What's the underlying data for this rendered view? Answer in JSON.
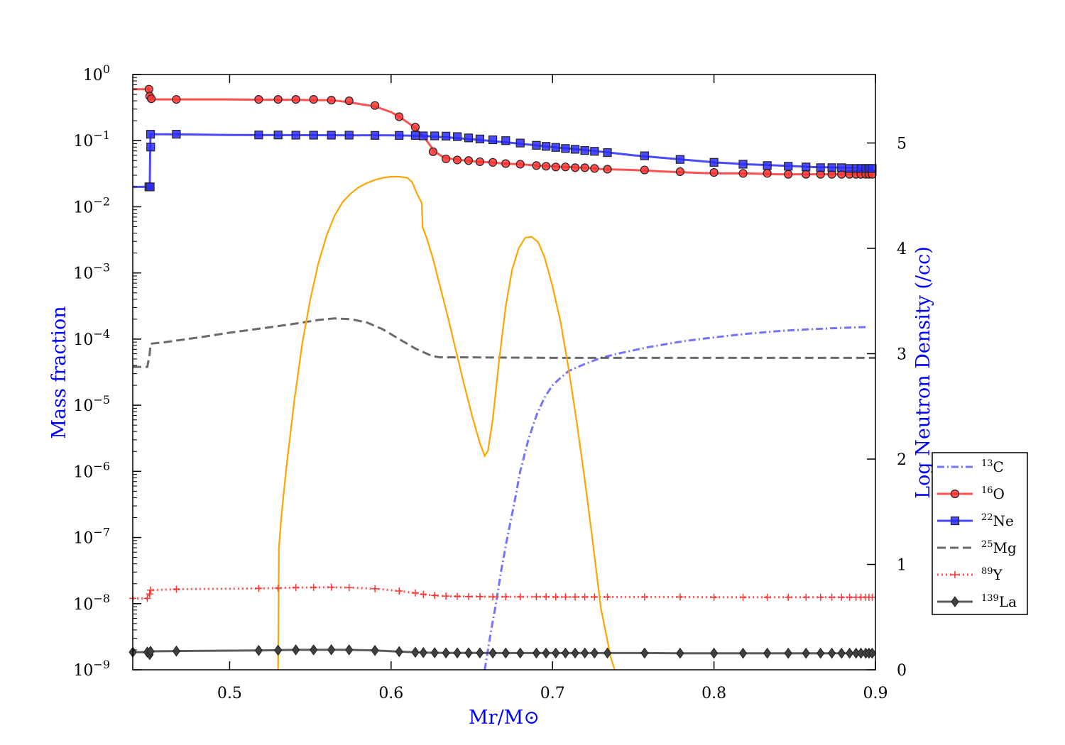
{
  "chart_data": {
    "type": "line",
    "xlabel": "Mr/M⊙",
    "ylabel_left": "Mass fraction",
    "ylabel_right": "Log Neutron Density (/cc)",
    "xlim": [
      0.44,
      0.9
    ],
    "ylim_left": [
      1e-09,
      1
    ],
    "yscale_left": "log",
    "ylim_right": [
      0,
      5.65
    ],
    "x_ticks": [
      "0.5",
      "0.6",
      "0.7",
      "0.8",
      "0.9"
    ],
    "x_tick_values": [
      0.5,
      0.6,
      0.7,
      0.8,
      0.9
    ],
    "y_left_ticks": [
      {
        "base": "10",
        "exp": "0",
        "value": 1
      },
      {
        "base": "10",
        "exp": "−1",
        "value": 0.1
      },
      {
        "base": "10",
        "exp": "−2",
        "value": 0.01
      },
      {
        "base": "10",
        "exp": "−3",
        "value": 0.001
      },
      {
        "base": "10",
        "exp": "−4",
        "value": 0.0001
      },
      {
        "base": "10",
        "exp": "−5",
        "value": 1e-05
      },
      {
        "base": "10",
        "exp": "−6",
        "value": 1e-06
      },
      {
        "base": "10",
        "exp": "−7",
        "value": 1e-07
      },
      {
        "base": "10",
        "exp": "−8",
        "value": 1e-08
      },
      {
        "base": "10",
        "exp": "−9",
        "value": 1e-09
      }
    ],
    "y_right_ticks": [
      "0",
      "1",
      "2",
      "3",
      "4",
      "5"
    ],
    "y_right_tick_values": [
      0,
      1,
      2,
      3,
      4,
      5
    ],
    "legend_position": "right",
    "colors": {
      "axis_title_left": "#0000ff",
      "axis_title_right": "#0000ff",
      "axis_title_x": "#0000ff",
      "neutron_density": "#ffa500"
    },
    "series": [
      {
        "name": "13C",
        "iso_mass": "13",
        "iso_sym": "C",
        "color": "#5a5aff",
        "style": "dashdot",
        "marker": "none",
        "axis": "left",
        "x": [
          0.658,
          0.66,
          0.662,
          0.665,
          0.668,
          0.672,
          0.676,
          0.68,
          0.685,
          0.69,
          0.695,
          0.7,
          0.705,
          0.71,
          0.72,
          0.73,
          0.74,
          0.76,
          0.78,
          0.8,
          0.82,
          0.84,
          0.86,
          0.88,
          0.895
        ],
        "y": [
          1e-09,
          2e-09,
          4e-09,
          1e-08,
          3e-08,
          1e-07,
          3e-07,
          1e-06,
          3e-06,
          7e-06,
          1.3e-05,
          2e-05,
          2.6e-05,
          3.3e-05,
          4.2e-05,
          5.2e-05,
          6e-05,
          7.6e-05,
          9.2e-05,
          0.000106,
          0.00012,
          0.000132,
          0.000141,
          0.000148,
          0.000152
        ]
      },
      {
        "name": "16O",
        "iso_mass": "16",
        "iso_sym": "O",
        "color": "#ff3333",
        "style": "solid",
        "marker": "circle",
        "axis": "left",
        "x": [
          0.44,
          0.45,
          0.4505,
          0.451,
          0.4515,
          0.46,
          0.47,
          0.5,
          0.52,
          0.53,
          0.54,
          0.55,
          0.56,
          0.567,
          0.574,
          0.58,
          0.59,
          0.6,
          0.605,
          0.61,
          0.615,
          0.618,
          0.622,
          0.627,
          0.633,
          0.64,
          0.646,
          0.653,
          0.662,
          0.67,
          0.68,
          0.69,
          0.7,
          0.705,
          0.71,
          0.715,
          0.72,
          0.725,
          0.732,
          0.75,
          0.77,
          0.8,
          0.82,
          0.84,
          0.86,
          0.87,
          0.88,
          0.885,
          0.89,
          0.895,
          0.898
        ],
        "y": [
          0.6,
          0.6,
          0.47,
          0.43,
          0.42,
          0.42,
          0.42,
          0.42,
          0.415,
          0.415,
          0.415,
          0.41,
          0.41,
          0.4,
          0.38,
          0.36,
          0.33,
          0.27,
          0.23,
          0.19,
          0.155,
          0.13,
          0.1,
          0.068,
          0.055,
          0.052,
          0.05,
          0.048,
          0.047,
          0.045,
          0.044,
          0.042,
          0.041,
          0.04,
          0.04,
          0.039,
          0.039,
          0.038,
          0.037,
          0.036,
          0.034,
          0.032,
          0.032,
          0.031,
          0.031,
          0.031,
          0.031,
          0.031,
          0.031,
          0.031,
          0.031
        ],
        "markers_x": [
          0.45,
          0.4505,
          0.4515,
          0.467,
          0.518,
          0.53,
          0.541,
          0.552,
          0.563,
          0.574,
          0.59,
          0.605,
          0.615,
          0.626,
          0.634,
          0.641,
          0.648,
          0.655,
          0.663,
          0.671,
          0.68,
          0.69,
          0.696,
          0.702,
          0.708,
          0.714,
          0.72,
          0.726,
          0.734,
          0.757,
          0.779,
          0.8,
          0.818,
          0.833,
          0.846,
          0.857,
          0.866,
          0.873,
          0.879,
          0.884,
          0.888,
          0.891,
          0.894,
          0.896,
          0.898
        ],
        "markers_y": [
          0.6,
          0.47,
          0.43,
          0.42,
          0.42,
          0.42,
          0.42,
          0.42,
          0.41,
          0.4,
          0.34,
          0.23,
          0.16,
          0.068,
          0.053,
          0.051,
          0.05,
          0.048,
          0.047,
          0.045,
          0.044,
          0.042,
          0.041,
          0.04,
          0.04,
          0.039,
          0.039,
          0.038,
          0.037,
          0.036,
          0.034,
          0.033,
          0.032,
          0.032,
          0.031,
          0.031,
          0.031,
          0.031,
          0.031,
          0.031,
          0.031,
          0.031,
          0.031,
          0.031,
          0.031
        ]
      },
      {
        "name": "22Ne",
        "iso_mass": "22",
        "iso_sym": "Ne",
        "color": "#2a2aff",
        "style": "solid",
        "marker": "square",
        "axis": "left",
        "x": [
          0.44,
          0.449,
          0.4505,
          0.4508,
          0.451,
          0.46,
          0.5,
          0.55,
          0.6,
          0.62,
          0.64,
          0.66,
          0.68,
          0.7,
          0.72,
          0.735,
          0.75,
          0.78,
          0.8,
          0.82,
          0.84,
          0.86,
          0.88,
          0.898
        ],
        "y": [
          0.02,
          0.02,
          0.02,
          0.08,
          0.125,
          0.125,
          0.122,
          0.121,
          0.12,
          0.118,
          0.11,
          0.1,
          0.09,
          0.08,
          0.072,
          0.066,
          0.06,
          0.052,
          0.047,
          0.044,
          0.042,
          0.04,
          0.039,
          0.038
        ],
        "markers_x": [
          0.45,
          0.4508,
          0.4511,
          0.451,
          0.467,
          0.518,
          0.53,
          0.541,
          0.552,
          0.563,
          0.574,
          0.59,
          0.605,
          0.615,
          0.62,
          0.627,
          0.634,
          0.641,
          0.648,
          0.655,
          0.663,
          0.671,
          0.68,
          0.69,
          0.696,
          0.702,
          0.708,
          0.714,
          0.72,
          0.726,
          0.734,
          0.757,
          0.779,
          0.8,
          0.818,
          0.833,
          0.846,
          0.857,
          0.866,
          0.873,
          0.879,
          0.884,
          0.888,
          0.891,
          0.894,
          0.896,
          0.898
        ],
        "markers_y": [
          0.02,
          0.02,
          0.08,
          0.125,
          0.125,
          0.122,
          0.122,
          0.121,
          0.121,
          0.121,
          0.121,
          0.12,
          0.12,
          0.12,
          0.118,
          0.118,
          0.117,
          0.115,
          0.11,
          0.106,
          0.103,
          0.1,
          0.092,
          0.085,
          0.082,
          0.079,
          0.076,
          0.074,
          0.071,
          0.069,
          0.066,
          0.059,
          0.052,
          0.047,
          0.044,
          0.042,
          0.041,
          0.04,
          0.039,
          0.039,
          0.039,
          0.038,
          0.038,
          0.038,
          0.038,
          0.038,
          0.038
        ]
      },
      {
        "name": "25Mg",
        "iso_mass": "25",
        "iso_sym": "Mg",
        "color": "#505050",
        "style": "dashed",
        "marker": "none",
        "axis": "left",
        "x": [
          0.44,
          0.449,
          0.4505,
          0.451,
          0.46,
          0.48,
          0.5,
          0.52,
          0.54,
          0.555,
          0.565,
          0.575,
          0.585,
          0.595,
          0.605,
          0.615,
          0.625,
          0.63,
          0.65,
          0.7,
          0.75,
          0.8,
          0.85,
          0.9
        ],
        "y": [
          3.8e-05,
          3.8e-05,
          6e-05,
          8.5e-05,
          9e-05,
          0.000105,
          0.000125,
          0.000145,
          0.00017,
          0.000195,
          0.000205,
          0.0002,
          0.000178,
          0.00014,
          0.0001,
          7.2e-05,
          5.6e-05,
          5.3e-05,
          5.3e-05,
          5.2e-05,
          5.2e-05,
          5.2e-05,
          5.2e-05,
          5.2e-05
        ]
      },
      {
        "name": "89Y",
        "iso_mass": "89",
        "iso_sym": "Y",
        "color": "#ff3333",
        "style": "dotted",
        "marker": "plus",
        "axis": "left",
        "x": [
          0.44,
          0.449,
          0.4505,
          0.451,
          0.467,
          0.518,
          0.53,
          0.541,
          0.552,
          0.563,
          0.574,
          0.59,
          0.605,
          0.615,
          0.62,
          0.627,
          0.634,
          0.641,
          0.648,
          0.655,
          0.663,
          0.671,
          0.68,
          0.69,
          0.696,
          0.702,
          0.708,
          0.714,
          0.72,
          0.726,
          0.734,
          0.757,
          0.779,
          0.8,
          0.818,
          0.833,
          0.846,
          0.857,
          0.866,
          0.873,
          0.879,
          0.884,
          0.888,
          0.891,
          0.894,
          0.896,
          0.898
        ],
        "y": [
          1.2e-08,
          1.2e-08,
          1.4e-08,
          1.6e-08,
          1.65e-08,
          1.7e-08,
          1.72e-08,
          1.75e-08,
          1.76e-08,
          1.77e-08,
          1.75e-08,
          1.68e-08,
          1.55e-08,
          1.45e-08,
          1.38e-08,
          1.33e-08,
          1.3e-08,
          1.29e-08,
          1.28e-08,
          1.28e-08,
          1.27e-08,
          1.27e-08,
          1.27e-08,
          1.27e-08,
          1.27e-08,
          1.26e-08,
          1.26e-08,
          1.26e-08,
          1.26e-08,
          1.26e-08,
          1.26e-08,
          1.26e-08,
          1.26e-08,
          1.25e-08,
          1.25e-08,
          1.25e-08,
          1.25e-08,
          1.25e-08,
          1.25e-08,
          1.25e-08,
          1.25e-08,
          1.25e-08,
          1.25e-08,
          1.25e-08,
          1.25e-08,
          1.25e-08,
          1.25e-08
        ]
      },
      {
        "name": "139La",
        "iso_mass": "139",
        "iso_sym": "La",
        "color": "#404040",
        "style": "solid",
        "marker": "diamond",
        "axis": "left",
        "x": [
          0.44,
          0.449,
          0.4505,
          0.451,
          0.467,
          0.518,
          0.53,
          0.541,
          0.552,
          0.563,
          0.574,
          0.59,
          0.605,
          0.615,
          0.62,
          0.627,
          0.634,
          0.641,
          0.648,
          0.655,
          0.663,
          0.671,
          0.68,
          0.69,
          0.696,
          0.702,
          0.708,
          0.714,
          0.72,
          0.726,
          0.734,
          0.757,
          0.779,
          0.8,
          0.818,
          0.833,
          0.846,
          0.857,
          0.866,
          0.873,
          0.879,
          0.884,
          0.888,
          0.891,
          0.894,
          0.896,
          0.898
        ],
        "y": [
          1.85e-09,
          1.85e-09,
          1.7e-09,
          1.9e-09,
          1.92e-09,
          1.96e-09,
          1.98e-09,
          2e-09,
          2e-09,
          2.01e-09,
          2e-09,
          1.96e-09,
          1.88e-09,
          1.84e-09,
          1.82e-09,
          1.81e-09,
          1.8e-09,
          1.8e-09,
          1.8e-09,
          1.8e-09,
          1.79e-09,
          1.79e-09,
          1.79e-09,
          1.79e-09,
          1.79e-09,
          1.79e-09,
          1.79e-09,
          1.79e-09,
          1.79e-09,
          1.79e-09,
          1.79e-09,
          1.79e-09,
          1.78e-09,
          1.78e-09,
          1.78e-09,
          1.78e-09,
          1.78e-09,
          1.78e-09,
          1.78e-09,
          1.78e-09,
          1.78e-09,
          1.78e-09,
          1.78e-09,
          1.78e-09,
          1.78e-09,
          1.78e-09,
          1.78e-09
        ]
      }
    ],
    "neutron_density": {
      "axis": "right",
      "color": "#ffa500",
      "x": [
        0.53,
        0.5305,
        0.532,
        0.535,
        0.54,
        0.545,
        0.55,
        0.555,
        0.56,
        0.565,
        0.57,
        0.575,
        0.58,
        0.585,
        0.59,
        0.595,
        0.6,
        0.605,
        0.61,
        0.613,
        0.616,
        0.618,
        0.619,
        0.6195,
        0.622,
        0.626,
        0.63,
        0.635,
        0.64,
        0.645,
        0.65,
        0.655,
        0.658,
        0.66,
        0.663,
        0.667,
        0.671,
        0.675,
        0.679,
        0.683,
        0.687,
        0.691,
        0.695,
        0.7,
        0.705,
        0.71,
        0.715,
        0.72,
        0.725,
        0.73,
        0.733,
        0.736,
        0.7385
      ],
      "y": [
        0,
        1.15,
        1.45,
        1.9,
        2.55,
        3.1,
        3.52,
        3.86,
        4.12,
        4.31,
        4.44,
        4.52,
        4.58,
        4.62,
        4.65,
        4.67,
        4.68,
        4.68,
        4.67,
        4.63,
        4.52,
        4.46,
        4.43,
        4.2,
        4.1,
        3.9,
        3.66,
        3.36,
        3.04,
        2.72,
        2.42,
        2.15,
        2.03,
        2.08,
        2.38,
        2.95,
        3.45,
        3.8,
        4.0,
        4.1,
        4.11,
        4.06,
        3.92,
        3.64,
        3.3,
        2.85,
        2.35,
        1.8,
        1.2,
        0.58,
        0.35,
        0.12,
        0
      ]
    }
  }
}
